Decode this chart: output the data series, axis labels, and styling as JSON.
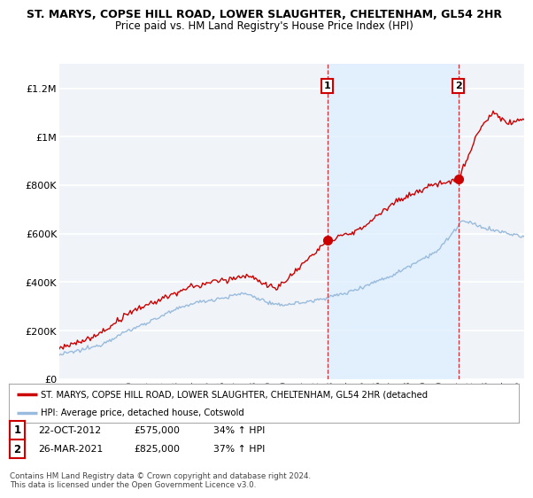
{
  "title": "ST. MARYS, COPSE HILL ROAD, LOWER SLAUGHTER, CHELTENHAM, GL54 2HR",
  "subtitle": "Price paid vs. HM Land Registry's House Price Index (HPI)",
  "ylabel_ticks": [
    "£0",
    "£200K",
    "£400K",
    "£600K",
    "£800K",
    "£1M",
    "£1.2M"
  ],
  "ytick_values": [
    0,
    200000,
    400000,
    600000,
    800000,
    1000000,
    1200000
  ],
  "ylim": [
    0,
    1300000
  ],
  "xlim_start": 1995.5,
  "xlim_end": 2025.5,
  "red_color": "#cc0000",
  "blue_color": "#99bbdd",
  "shade_color": "#ddeeff",
  "red_line_label": "ST. MARYS, COPSE HILL ROAD, LOWER SLAUGHTER, CHELTENHAM, GL54 2HR (detached",
  "blue_line_label": "HPI: Average price, detached house, Cotswold",
  "event1_x": 2012.8,
  "event1_y": 575000,
  "event1_label": "1",
  "event1_date": "22-OCT-2012",
  "event1_price": "£575,000",
  "event1_hpi": "34% ↑ HPI",
  "event2_x": 2021.25,
  "event2_y": 825000,
  "event2_label": "2",
  "event2_date": "26-MAR-2021",
  "event2_price": "£825,000",
  "event2_hpi": "37% ↑ HPI",
  "footer": "Contains HM Land Registry data © Crown copyright and database right 2024.\nThis data is licensed under the Open Government Licence v3.0.",
  "bg_color": "#ffffff",
  "plot_bg_color": "#f0f4f8",
  "grid_color": "#ffffff"
}
